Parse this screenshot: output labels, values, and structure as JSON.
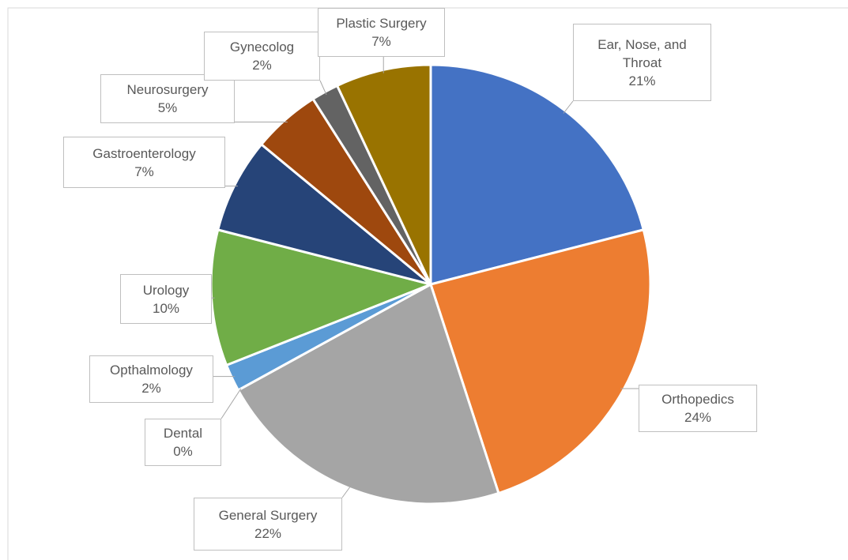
{
  "chart_data": {
    "type": "pie",
    "categories": [
      "Ear, Nose, and Throat",
      "Orthopedics",
      "General Surgery",
      "Dental",
      "Opthalmology",
      "Urology",
      "Gastroenterology",
      "Neurosurgery",
      "Gynecolog",
      "Plastic Surgery"
    ],
    "values": [
      21,
      24,
      22,
      0,
      2,
      10,
      7,
      5,
      2,
      7
    ],
    "value_labels": [
      "21%",
      "24%",
      "22%",
      "0%",
      "2%",
      "10%",
      "7%",
      "5%",
      "2%",
      "7%"
    ],
    "colors": [
      "#4472c4",
      "#ed7d31",
      "#a5a5a5",
      "#ffc000",
      "#5b9bd5",
      "#70ad47",
      "#264478",
      "#9e480e",
      "#636363",
      "#997300"
    ]
  }
}
